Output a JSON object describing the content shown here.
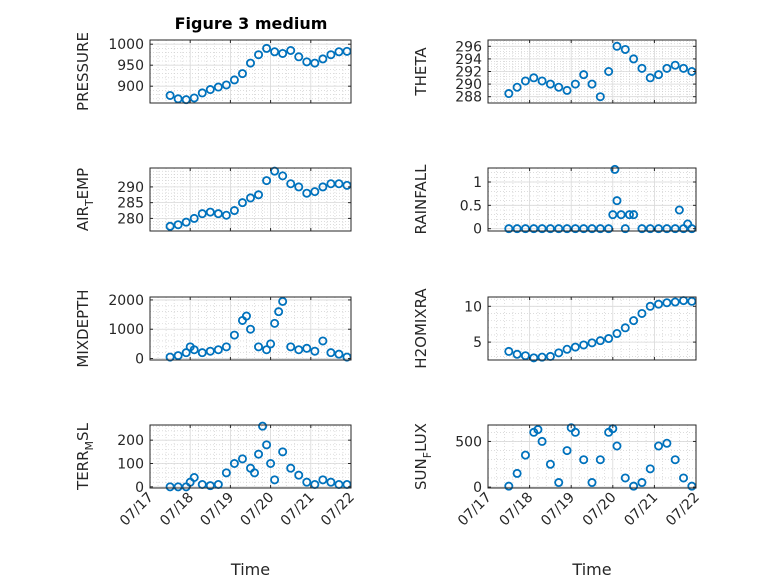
{
  "figure_title": "Figure 3 medium",
  "marker_color": "#0072BD",
  "x_tick_labels": [
    "07/17",
    "07/18",
    "07/19",
    "07/20",
    "07/21",
    "07/22"
  ],
  "chart_data": [
    {
      "type": "scatter",
      "title": "Figure 3 medium",
      "ylabel": "PRESSURE",
      "ylabel_main": "PRESSURE",
      "ylabel_sub": "",
      "ylabel_tail": "",
      "xlabel": "",
      "xlim": [
        0,
        5
      ],
      "ylim": [
        860,
        1010
      ],
      "yticks": [
        900,
        950,
        1000
      ],
      "x": [
        0.5,
        0.7,
        0.9,
        1.1,
        1.3,
        1.5,
        1.7,
        1.9,
        2.1,
        2.3,
        2.5,
        2.7,
        2.9,
        3.1,
        3.3,
        3.5,
        3.7,
        3.9,
        4.1,
        4.3,
        4.5,
        4.7,
        4.9
      ],
      "y": [
        878,
        870,
        868,
        872,
        884,
        892,
        898,
        903,
        915,
        930,
        955,
        975,
        990,
        982,
        978,
        985,
        970,
        958,
        955,
        965,
        975,
        982,
        983
      ]
    },
    {
      "type": "scatter",
      "ylabel": "THETA",
      "ylabel_main": "THETA",
      "ylabel_sub": "",
      "ylabel_tail": "",
      "xlabel": "",
      "xlim": [
        0,
        5
      ],
      "ylim": [
        287,
        297
      ],
      "yticks": [
        288,
        290,
        292,
        294,
        296
      ],
      "x": [
        0.5,
        0.7,
        0.9,
        1.1,
        1.3,
        1.5,
        1.7,
        1.9,
        2.1,
        2.3,
        2.5,
        2.7,
        2.9,
        3.1,
        3.3,
        3.5,
        3.7,
        3.9,
        4.1,
        4.3,
        4.5,
        4.7,
        4.9
      ],
      "y": [
        288.5,
        289.5,
        290.5,
        291.0,
        290.5,
        290.0,
        289.5,
        289.0,
        290.0,
        291.5,
        290.0,
        288.0,
        292.0,
        296.0,
        295.5,
        294.0,
        292.5,
        291.0,
        291.5,
        292.5,
        293.0,
        292.5,
        292.0
      ]
    },
    {
      "type": "scatter",
      "ylabel": "AIR_TEMP",
      "ylabel_main": "AIR",
      "ylabel_sub": "T",
      "ylabel_tail": "EMP",
      "xlabel": "",
      "xlim": [
        0,
        5
      ],
      "ylim": [
        276,
        296
      ],
      "yticks": [
        280,
        285,
        290
      ],
      "x": [
        0.5,
        0.7,
        0.9,
        1.1,
        1.3,
        1.5,
        1.7,
        1.9,
        2.1,
        2.3,
        2.5,
        2.7,
        2.9,
        3.1,
        3.3,
        3.5,
        3.7,
        3.9,
        4.1,
        4.3,
        4.5,
        4.7,
        4.9
      ],
      "y": [
        277.5,
        278.0,
        278.8,
        280.0,
        281.5,
        282.0,
        281.5,
        281.0,
        282.5,
        285.0,
        286.5,
        287.5,
        292.0,
        295.0,
        293.5,
        291.0,
        290.0,
        288.0,
        288.5,
        290.0,
        291.0,
        291.0,
        290.5
      ]
    },
    {
      "type": "scatter",
      "ylabel": "RAINFALL",
      "ylabel_main": "RAINFALL",
      "ylabel_sub": "",
      "ylabel_tail": "",
      "xlabel": "",
      "xlim": [
        0,
        5
      ],
      "ylim": [
        -0.05,
        1.3
      ],
      "yticks": [
        0,
        0.5,
        1
      ],
      "x": [
        0.5,
        0.7,
        0.9,
        1.1,
        1.3,
        1.5,
        1.7,
        1.9,
        2.1,
        2.3,
        2.5,
        2.7,
        2.9,
        3.0,
        3.05,
        3.1,
        3.2,
        3.3,
        3.4,
        3.5,
        3.7,
        3.9,
        4.1,
        4.3,
        4.5,
        4.6,
        4.7,
        4.8,
        4.9
      ],
      "y": [
        0,
        0,
        0,
        0,
        0,
        0,
        0,
        0,
        0,
        0,
        0,
        0,
        0,
        0.3,
        1.27,
        0.6,
        0.3,
        0,
        0.3,
        0.3,
        0,
        0,
        0,
        0,
        0,
        0.4,
        0,
        0.1,
        0
      ]
    },
    {
      "type": "scatter",
      "ylabel": "MIXDEPTH",
      "ylabel_main": "MIXDEPTH",
      "ylabel_sub": "",
      "ylabel_tail": "",
      "xlabel": "",
      "xlim": [
        0,
        5
      ],
      "ylim": [
        -50,
        2100
      ],
      "yticks": [
        0,
        1000,
        2000
      ],
      "x": [
        0.5,
        0.7,
        0.9,
        1.0,
        1.1,
        1.3,
        1.5,
        1.7,
        1.9,
        2.1,
        2.3,
        2.4,
        2.5,
        2.7,
        2.9,
        3.0,
        3.1,
        3.2,
        3.3,
        3.5,
        3.7,
        3.9,
        4.1,
        4.3,
        4.5,
        4.7,
        4.9
      ],
      "y": [
        50,
        100,
        200,
        400,
        300,
        200,
        250,
        300,
        400,
        800,
        1300,
        1450,
        1000,
        400,
        300,
        500,
        1200,
        1600,
        1950,
        400,
        300,
        350,
        250,
        600,
        200,
        150,
        50
      ]
    },
    {
      "type": "scatter",
      "ylabel": "H2OMIXRA",
      "ylabel_main": "H2OMIXRA",
      "ylabel_sub": "",
      "ylabel_tail": "",
      "xlabel": "",
      "xlim": [
        0,
        5
      ],
      "ylim": [
        2.5,
        11.3
      ],
      "yticks": [
        5,
        10
      ],
      "x": [
        0.5,
        0.7,
        0.9,
        1.1,
        1.3,
        1.5,
        1.7,
        1.9,
        2.1,
        2.3,
        2.5,
        2.7,
        2.9,
        3.1,
        3.3,
        3.5,
        3.7,
        3.9,
        4.1,
        4.3,
        4.5,
        4.7,
        4.9
      ],
      "y": [
        3.7,
        3.3,
        3.1,
        2.8,
        2.9,
        3.0,
        3.5,
        4.0,
        4.3,
        4.6,
        4.9,
        5.2,
        5.5,
        6.2,
        7.0,
        8.0,
        9.0,
        10.0,
        10.3,
        10.5,
        10.6,
        10.8,
        10.7
      ]
    },
    {
      "type": "scatter",
      "ylabel": "TERR_MSL",
      "ylabel_main": "TERR",
      "ylabel_sub": "M",
      "ylabel_tail": "SL",
      "xlabel": "Time",
      "xlim": [
        0,
        5
      ],
      "ylim": [
        -5,
        265
      ],
      "yticks": [
        0,
        100,
        200
      ],
      "x": [
        0.5,
        0.7,
        0.9,
        1.0,
        1.1,
        1.3,
        1.5,
        1.7,
        1.9,
        2.1,
        2.3,
        2.5,
        2.6,
        2.7,
        2.8,
        2.9,
        3.0,
        3.1,
        3.3,
        3.5,
        3.7,
        3.9,
        4.1,
        4.3,
        4.5,
        4.7,
        4.9
      ],
      "y": [
        0,
        0,
        0,
        20,
        40,
        10,
        5,
        10,
        60,
        100,
        120,
        80,
        60,
        140,
        260,
        180,
        100,
        30,
        150,
        80,
        50,
        20,
        10,
        30,
        20,
        10,
        10
      ]
    },
    {
      "type": "scatter",
      "ylabel": "SUN_FLUX",
      "ylabel_main": "SUN",
      "ylabel_sub": "F",
      "ylabel_tail": "LUX",
      "xlabel": "Time",
      "xlim": [
        0,
        5
      ],
      "ylim": [
        -10,
        680
      ],
      "yticks": [
        0,
        500
      ],
      "x": [
        0.5,
        0.7,
        0.9,
        1.1,
        1.2,
        1.3,
        1.5,
        1.7,
        1.9,
        2.0,
        2.1,
        2.3,
        2.5,
        2.7,
        2.9,
        3.0,
        3.1,
        3.3,
        3.5,
        3.7,
        3.9,
        4.1,
        4.3,
        4.5,
        4.7,
        4.9
      ],
      "y": [
        10,
        150,
        350,
        600,
        630,
        500,
        250,
        50,
        400,
        650,
        600,
        300,
        50,
        300,
        600,
        640,
        450,
        100,
        10,
        50,
        200,
        450,
        480,
        300,
        100,
        10
      ]
    }
  ]
}
